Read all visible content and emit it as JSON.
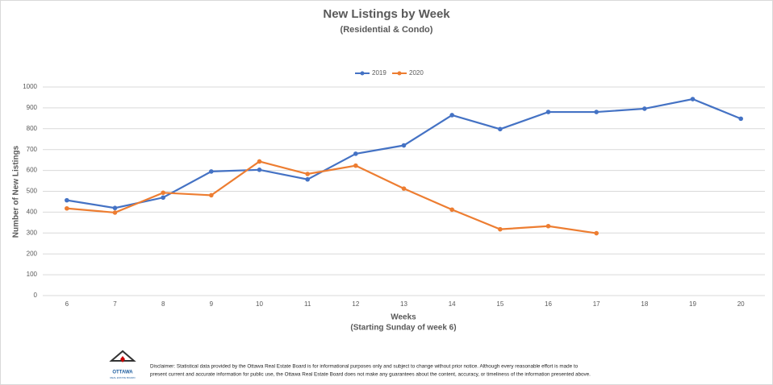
{
  "chart_data": {
    "type": "line",
    "title": "New Listings by Week",
    "subtitle": "(Residential & Condo)",
    "x_label": "Weeks",
    "x_sublabel": "(Starting Sunday of week 6)",
    "y_label": "Number of New Listings",
    "categories": [
      "6",
      "7",
      "8",
      "9",
      "10",
      "11",
      "12",
      "13",
      "14",
      "15",
      "16",
      "17",
      "18",
      "19",
      "20"
    ],
    "series": [
      {
        "name": "2019",
        "color": "#4472c4",
        "values": [
          457,
          420,
          470,
          595,
          603,
          557,
          680,
          720,
          865,
          798,
          880,
          880,
          896,
          942,
          848
        ]
      },
      {
        "name": "2020",
        "color": "#ed7d31",
        "values": [
          418,
          398,
          493,
          481,
          643,
          583,
          623,
          513,
          412,
          318,
          333,
          299,
          null,
          null,
          null
        ]
      }
    ],
    "ylim": [
      0,
      1000
    ],
    "yticks": [
      0,
      100,
      200,
      300,
      400,
      500,
      600,
      700,
      800,
      900,
      1000
    ],
    "grid": true,
    "legend": "top",
    "logo": [
      "OTTAWA",
      "REAL ESTATE BOARD"
    ],
    "disclaimer": [
      "Disclaimer: Statistical data provided by the Ottawa Real Estate Board is for informational purposes only and subject to change without prior notice. Although every reasonable effort is made to",
      "present current and accurate information for public use, the Ottawa Real Estate Board does not make any guarantees about the content, accuracy, or timeliness of the information presented above."
    ]
  }
}
